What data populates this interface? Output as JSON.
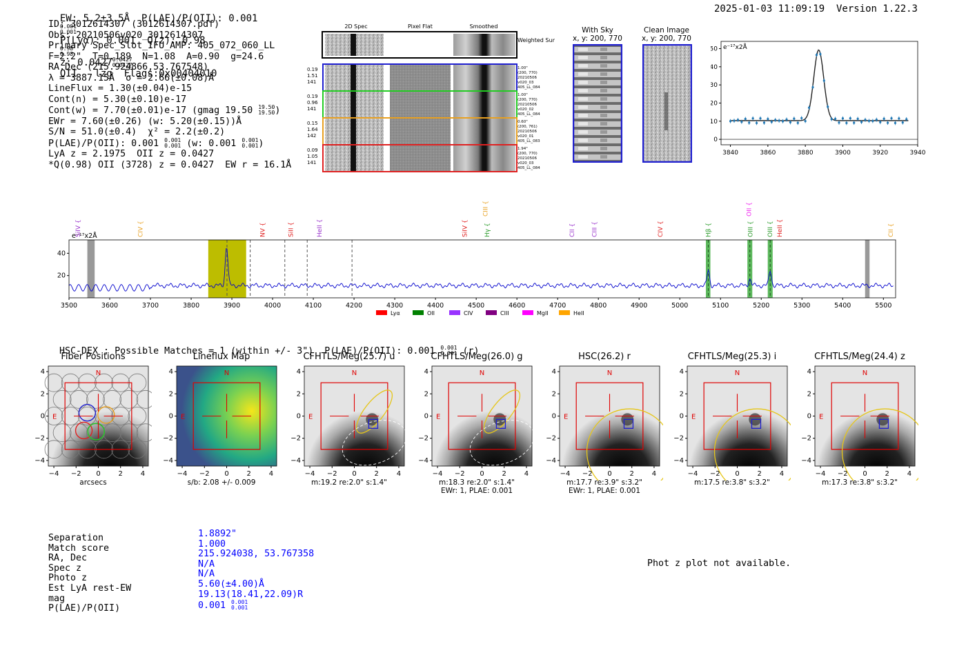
{
  "header": {
    "left": "EW: 5.2±3.5Å  P(LAE)/P(OII): 0.001",
    "left_frac_top": "0.001",
    "left_frac_bot": "0.001",
    "ply": "P(Lyα): 0.001  Q(z): 0.98",
    "q_top": "0.98",
    "q_bot": "0.98",
    "z": "z: 0.0427",
    "z_top": "0.0427",
    "z_bot": "0.0427",
    "z_tail": "OII   lzg  Flags:0x00404010",
    "right": "2025-01-03 11:09:19  Version 1.22.3"
  },
  "info": {
    "lines": [
      "ID: 3012614307 (3012614307.pdf)",
      "Obs: 20210506v020_3012614307",
      "Primary Spec_Slot_IFU_AMP: 405_072_060_LL",
      "F=2.2\"  T=0.189  N=1.08  A=0.90  g=24.6",
      "RA,Dec (215.924866,53.767548)",
      "λ = 3887.15Å  σ = 2.66(±0.08)Å",
      "LineFlux = 1.30(±0.04)e-15",
      "Cont(n) = 5.30(±0.10)e-17",
      "Cont(w) = 7.70(±0.01)e-17 (gmag 19.50",
      "EWr = 7.60(±0.26) (w: 5.20(±0.15))Å",
      "S/N = 51.0(±0.4)  χ² = 2.2(±0.2)",
      "P(LAE)/P(OII): 0.001",
      "LyA z = 2.1975  OII z = 0.0427",
      "*Q(0.98) OII (3728) z = 0.0427  EW r = 16.1Å"
    ],
    "gmag_top": "19.50",
    "gmag_bot": "19.50",
    "plae_top": "0.001",
    "plae_bot": "0.001",
    "plae_w": "(w: 0.001",
    "plae_w_top": "0.001",
    "plae_w_bot": "0.001",
    "paren_close": ")"
  },
  "cutouts": {
    "col_titles": [
      "2D Spec",
      "Pixel Flat",
      "Smoothed"
    ],
    "weighted_label": "Weighted Sum",
    "rows": [
      {
        "left": [
          "0.19",
          "1.51",
          "141"
        ],
        "right": [
          "1.00\"",
          "(200, 770)",
          "20210506",
          "v020_03",
          "405_LL_084"
        ],
        "color": "#1f1fd0"
      },
      {
        "left": [
          "0.19",
          "0.96",
          "141"
        ],
        "right": [
          "1.00\"",
          "(200, 770)",
          "20210506",
          "v020_02",
          "405_LL_084"
        ],
        "color": "#22cc22"
      },
      {
        "left": [
          "0.15",
          "1.64",
          "142"
        ],
        "right": [
          "0.60\"",
          "(200, 761)",
          "20210506",
          "v020_01",
          "405_LL_083"
        ],
        "color": "#e8a020"
      },
      {
        "left": [
          "0.09",
          "1.05",
          "141"
        ],
        "right": [
          "1.94\"",
          "(200, 770)",
          "20210506",
          "v020_03",
          "405_LL_084"
        ],
        "color": "#e02020"
      }
    ],
    "with_sky_title": "With Sky",
    "with_sky_sub": "x, y: 200, 770",
    "clean_title": "Clean Image",
    "clean_sub": "x, y: 200, 770"
  },
  "zoom_plot": {
    "unit_label": "e⁻¹⁷x2Å",
    "xlim": [
      3835,
      3940
    ],
    "ylim": [
      -3,
      54
    ],
    "xticks": [
      3840,
      3860,
      3880,
      3900,
      3920,
      3940
    ],
    "yticks": [
      0,
      10,
      20,
      30,
      40,
      50
    ]
  },
  "spectrum": {
    "unit_label": "e⁻¹⁷x2Å",
    "xlim": [
      3500,
      5530
    ],
    "ylim": [
      0,
      52
    ],
    "xticks": [
      3500,
      3600,
      3700,
      3800,
      3900,
      4000,
      4100,
      4200,
      4300,
      4400,
      4500,
      4600,
      4700,
      4800,
      4900,
      5000,
      5100,
      5200,
      5300,
      5400,
      5500
    ],
    "yticks": [
      20,
      40
    ],
    "lines": [
      {
        "label": "SiIV",
        "wave": 3522,
        "color": "#9933cc",
        "tier": 1
      },
      {
        "label": "CIV",
        "wave": 3675,
        "color": "#e8a020",
        "tier": 1
      },
      {
        "label": "NV",
        "wave": 3975,
        "color": "#e02020",
        "tier": 1
      },
      {
        "label": "SiII",
        "wave": 4045,
        "color": "#e02020",
        "tier": 1
      },
      {
        "label": "HeII",
        "wave": 4115,
        "color": "#9933cc",
        "tier": 1
      },
      {
        "label": "CIII",
        "wave": 4523,
        "color": "#e8a020",
        "tier": 0
      },
      {
        "label": "SiIV",
        "wave": 4472,
        "color": "#e02020",
        "tier": 1
      },
      {
        "label": "Hγ",
        "wave": 4527,
        "color": "#2a9a2a",
        "tier": 1
      },
      {
        "label": "CII",
        "wave": 4735,
        "color": "#9933cc",
        "tier": 1
      },
      {
        "label": "CIII",
        "wave": 4790,
        "color": "#9933cc",
        "tier": 1
      },
      {
        "label": "CIV",
        "wave": 4952,
        "color": "#e02020",
        "tier": 1
      },
      {
        "label": "Hβ",
        "wave": 5070,
        "color": "#2a9a2a",
        "tier": 1
      },
      {
        "label": "OII",
        "wave": 5170,
        "color": "#ee22ee",
        "tier": 0
      },
      {
        "label": "OIII",
        "wave": 5173,
        "color": "#2a9a2a",
        "tier": 1
      },
      {
        "label": "OIII",
        "wave": 5222,
        "color": "#2a9a2a",
        "tier": 1
      },
      {
        "label": "HeII",
        "wave": 5245,
        "color": "#e02020",
        "tier": 1
      },
      {
        "label": "CII",
        "wave": 5518,
        "color": "#e8a020",
        "tier": 1
      }
    ],
    "legend": [
      {
        "label": "Lyα",
        "color": "#ff0000"
      },
      {
        "label": "OII",
        "color": "#008000"
      },
      {
        "label": "CIV",
        "color": "#9933ff"
      },
      {
        "label": "CIII",
        "color": "#800080"
      },
      {
        "label": "MgII",
        "color": "#ff00ff"
      },
      {
        "label": "HeII",
        "color": "#ffa500"
      }
    ]
  },
  "hsc": {
    "summary": "HSC-DEX : Possible Matches = 1 (within +/- 3\")  P(LAE)/P(OII): 0.001",
    "summary_top": "0.001",
    "summary_bot": "0.001",
    "summary_tail": "(r)",
    "axis_ticks": [
      "-4",
      "-2",
      "0",
      "2",
      "4"
    ],
    "N": "N",
    "E": "E",
    "panels": [
      {
        "title": "Fiber Positions",
        "captions": [
          "arcsecs"
        ]
      },
      {
        "title": "Lineflux Map",
        "captions": [
          "s/b: 2.08 +/- 0.009"
        ]
      },
      {
        "title": "CFHTLS/Meg(25.7) u",
        "captions": [
          "m:19.2  re:2.0\"  s:1.4\""
        ]
      },
      {
        "title": "CFHTLS/Meg(26.0) g",
        "captions": [
          "m:18.3  re:2.0\"  s:1.4\"",
          "EWr: 1, PLAE: 0.001"
        ]
      },
      {
        "title": "HSC(26.2) r",
        "captions": [
          "m:17.7  re:3.9\"  s:3.2\"",
          "EWr: 1, PLAE: 0.001"
        ]
      },
      {
        "title": "CFHTLS/Meg(25.3) i",
        "captions": [
          "m:17.5  re:3.8\"  s:3.2\""
        ]
      },
      {
        "title": "CFHTLS/Meg(24.4) z",
        "captions": [
          "m:17.3  re:3.8\"  s:3.2\""
        ]
      }
    ]
  },
  "match": {
    "labels": [
      "Separation",
      "Match score",
      "RA, Dec",
      "Spec z",
      "Photo z",
      "Est LyA rest-EW",
      "mag",
      "P(LAE)/P(OII)"
    ],
    "values": [
      "1.8892\"",
      "1.000",
      "215.924038, 53.767358",
      "N/A",
      "N/A",
      "5.60(±4.00)Å",
      "19.13(18.41,22.09)R",
      "0.001"
    ],
    "plae_top": "0.001",
    "plae_bot": "0.001",
    "phot_z_note": "Phot z plot not available."
  }
}
